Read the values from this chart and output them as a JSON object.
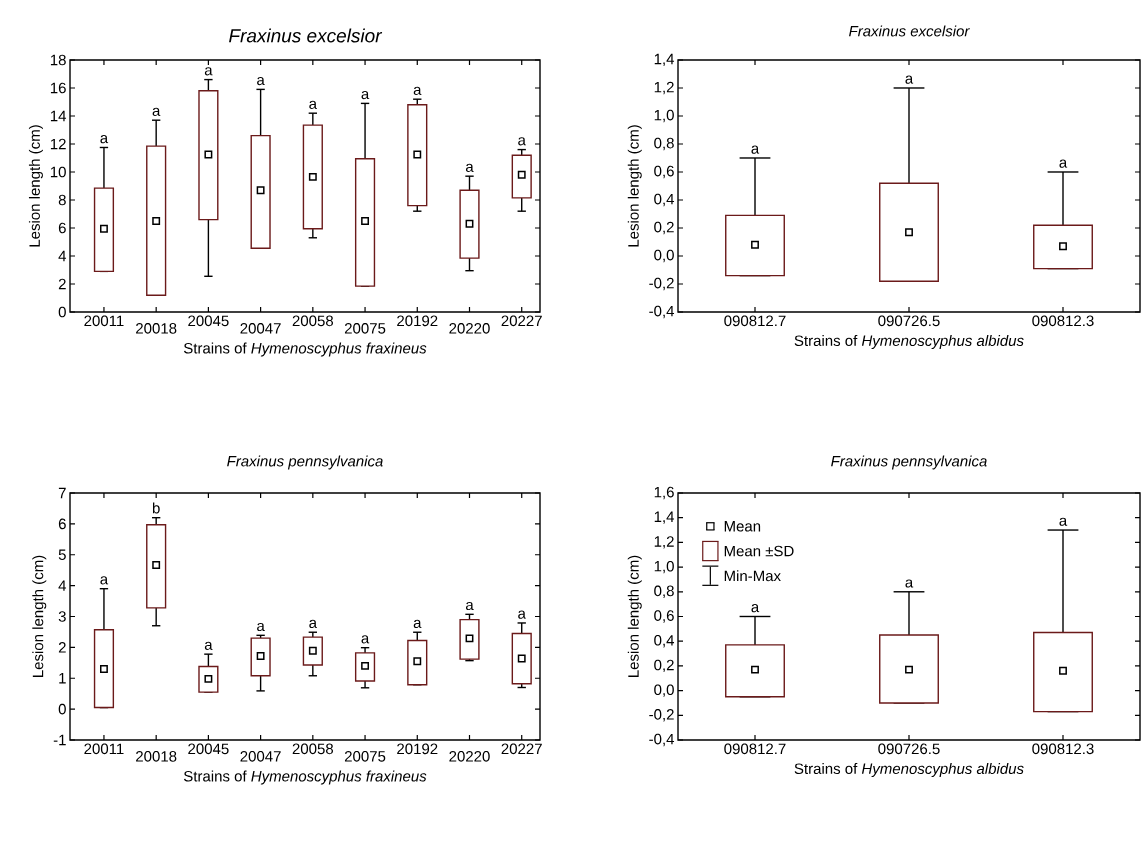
{
  "chart_data": [
    {
      "type": "box",
      "title": "Fraxinus excelsior",
      "xlabel": "Strains of *Hymenoscyphus fraxineus*",
      "ylabel": "Lesion length (cm)",
      "marker": "square",
      "categories": [
        "20011",
        "20018",
        "20045",
        "20047",
        "20058",
        "20075",
        "20192",
        "20220",
        "20227"
      ],
      "ylim": [
        0,
        18
      ],
      "yticks": [
        0,
        2,
        4,
        6,
        8,
        10,
        12,
        14,
        16,
        18
      ],
      "series": [
        {
          "color": "#6b1a1a",
          "boxes": [
            {
              "low": 2.9,
              "q1": 2.9,
              "median": 5.95,
              "q3": 8.85,
              "high": 11.75
            },
            {
              "low": 1.2,
              "q1": 1.2,
              "median": 6.5,
              "q3": 11.85,
              "high": 13.7
            },
            {
              "low": 2.55,
              "q1": 6.6,
              "median": 11.25,
              "q3": 15.8,
              "high": 16.6
            },
            {
              "low": 4.55,
              "q1": 4.55,
              "median": 8.7,
              "q3": 12.6,
              "high": 15.9
            },
            {
              "low": 5.3,
              "q1": 5.95,
              "median": 9.65,
              "q3": 13.35,
              "high": 14.2
            },
            {
              "low": 1.85,
              "q1": 1.85,
              "median": 6.5,
              "q3": 10.95,
              "high": 14.9
            },
            {
              "low": 7.2,
              "q1": 7.6,
              "median": 11.25,
              "q3": 14.8,
              "high": 15.2
            },
            {
              "low": 2.95,
              "q1": 3.85,
              "median": 6.3,
              "q3": 8.7,
              "high": 9.7
            },
            {
              "low": 7.2,
              "q1": 8.15,
              "median": 9.8,
              "q3": 11.2,
              "high": 11.6
            }
          ]
        }
      ],
      "annotations": [
        "a",
        "a",
        "a",
        "a",
        "a",
        "a",
        "a",
        "a",
        "a"
      ]
    },
    {
      "type": "box",
      "title": "Fraxinus excelsior",
      "xlabel": "Strains of *Hymenoscyphus albidus*",
      "ylabel": "Lesion length (cm)",
      "marker": "square",
      "categories": [
        "090812.7",
        "090726.5",
        "090812.3"
      ],
      "ylim": [
        -0.4,
        1.4
      ],
      "yticks": [
        {
          "value": -0.4,
          "label": "-0,4"
        },
        {
          "value": -0.2,
          "label": "-0,2"
        },
        {
          "value": 0,
          "label": "0,0"
        },
        {
          "value": 0.2,
          "label": "0,2"
        },
        {
          "value": 0.4,
          "label": "0,4"
        },
        {
          "value": 0.6,
          "label": "0,6"
        },
        {
          "value": 0.8,
          "label": "0,8"
        },
        {
          "value": 1.0,
          "label": "1,0"
        },
        {
          "value": 1.2,
          "label": "1,2"
        },
        {
          "value": 1.4,
          "label": "1,4"
        }
      ],
      "series": [
        {
          "color": "#6b1a1a",
          "boxes": [
            {
              "low": -0.14,
              "q1": -0.14,
              "median": 0.08,
              "q3": 0.29,
              "high": 0.7
            },
            {
              "low": -0.18,
              "q1": -0.18,
              "median": 0.17,
              "q3": 0.52,
              "high": 1.2
            },
            {
              "low": -0.09,
              "q1": -0.09,
              "median": 0.07,
              "q3": 0.22,
              "high": 0.6
            }
          ]
        }
      ],
      "annotations": [
        "a",
        "a",
        "a"
      ]
    },
    {
      "type": "box",
      "title": "Fraxinus pennsylvanica",
      "xlabel": "Strains of *Hymenoscyphus fraxineus*",
      "ylabel": "Lesion length (cm)",
      "marker": "square",
      "categories": [
        "20011",
        "20018",
        "20045",
        "20047",
        "20058",
        "20075",
        "20192",
        "20220",
        "20227"
      ],
      "ylim": [
        -1,
        7
      ],
      "yticks": [
        -1,
        0,
        1,
        2,
        3,
        4,
        5,
        6,
        7
      ],
      "series": [
        {
          "color": "#6b1a1a",
          "boxes": [
            {
              "low": 0.05,
              "q1": 0.05,
              "median": 1.3,
              "q3": 2.57,
              "high": 3.9
            },
            {
              "low": 2.7,
              "q1": 3.28,
              "median": 4.67,
              "q3": 5.97,
              "high": 6.2
            },
            {
              "low": 0.55,
              "q1": 0.55,
              "median": 0.98,
              "q3": 1.38,
              "high": 1.78
            },
            {
              "low": 0.59,
              "q1": 1.08,
              "median": 1.72,
              "q3": 2.3,
              "high": 2.39
            },
            {
              "low": 1.08,
              "q1": 1.43,
              "median": 1.89,
              "q3": 2.33,
              "high": 2.49
            },
            {
              "low": 0.69,
              "q1": 0.91,
              "median": 1.4,
              "q3": 1.82,
              "high": 1.99
            },
            {
              "low": 0.79,
              "q1": 0.79,
              "median": 1.55,
              "q3": 2.22,
              "high": 2.49
            },
            {
              "low": 1.57,
              "q1": 1.62,
              "median": 2.29,
              "q3": 2.9,
              "high": 3.07
            },
            {
              "low": 0.7,
              "q1": 0.82,
              "median": 1.64,
              "q3": 2.45,
              "high": 2.79
            }
          ]
        }
      ],
      "annotations": [
        "a",
        "b",
        "a",
        "a",
        "a",
        "a",
        "a",
        "a",
        "a"
      ]
    },
    {
      "type": "box",
      "title": "Fraxinus pennsylvanica",
      "xlabel": "Strains of *Hymenoscyphus albidus*",
      "ylabel": "Lesion length (cm)",
      "marker": "square",
      "categories": [
        "090812.7",
        "090726.5",
        "090812.3"
      ],
      "ylim": [
        -0.4,
        1.6
      ],
      "yticks": [
        {
          "value": -0.4,
          "label": "-0,4"
        },
        {
          "value": -0.2,
          "label": "-0,2"
        },
        {
          "value": 0,
          "label": "0,0"
        },
        {
          "value": 0.2,
          "label": "0,2"
        },
        {
          "value": 0.4,
          "label": "0,4"
        },
        {
          "value": 0.6,
          "label": "0,6"
        },
        {
          "value": 0.8,
          "label": "0,8"
        },
        {
          "value": 1.0,
          "label": "1,0"
        },
        {
          "value": 1.2,
          "label": "1,2"
        },
        {
          "value": 1.4,
          "label": "1,4"
        },
        {
          "value": 1.6,
          "label": "1,6"
        }
      ],
      "series": [
        {
          "color": "#6b1a1a",
          "boxes": [
            {
              "low": -0.05,
              "q1": -0.05,
              "median": 0.17,
              "q3": 0.37,
              "high": 0.6
            },
            {
              "low": -0.1,
              "q1": -0.1,
              "median": 0.17,
              "q3": 0.45,
              "high": 0.8
            },
            {
              "low": -0.17,
              "q1": -0.17,
              "median": 0.16,
              "q3": 0.47,
              "high": 1.3
            }
          ]
        }
      ],
      "annotations": [
        "a",
        "a",
        "a",
        "Mean",
        "Mean ±SD",
        "Min-Max"
      ]
    }
  ]
}
